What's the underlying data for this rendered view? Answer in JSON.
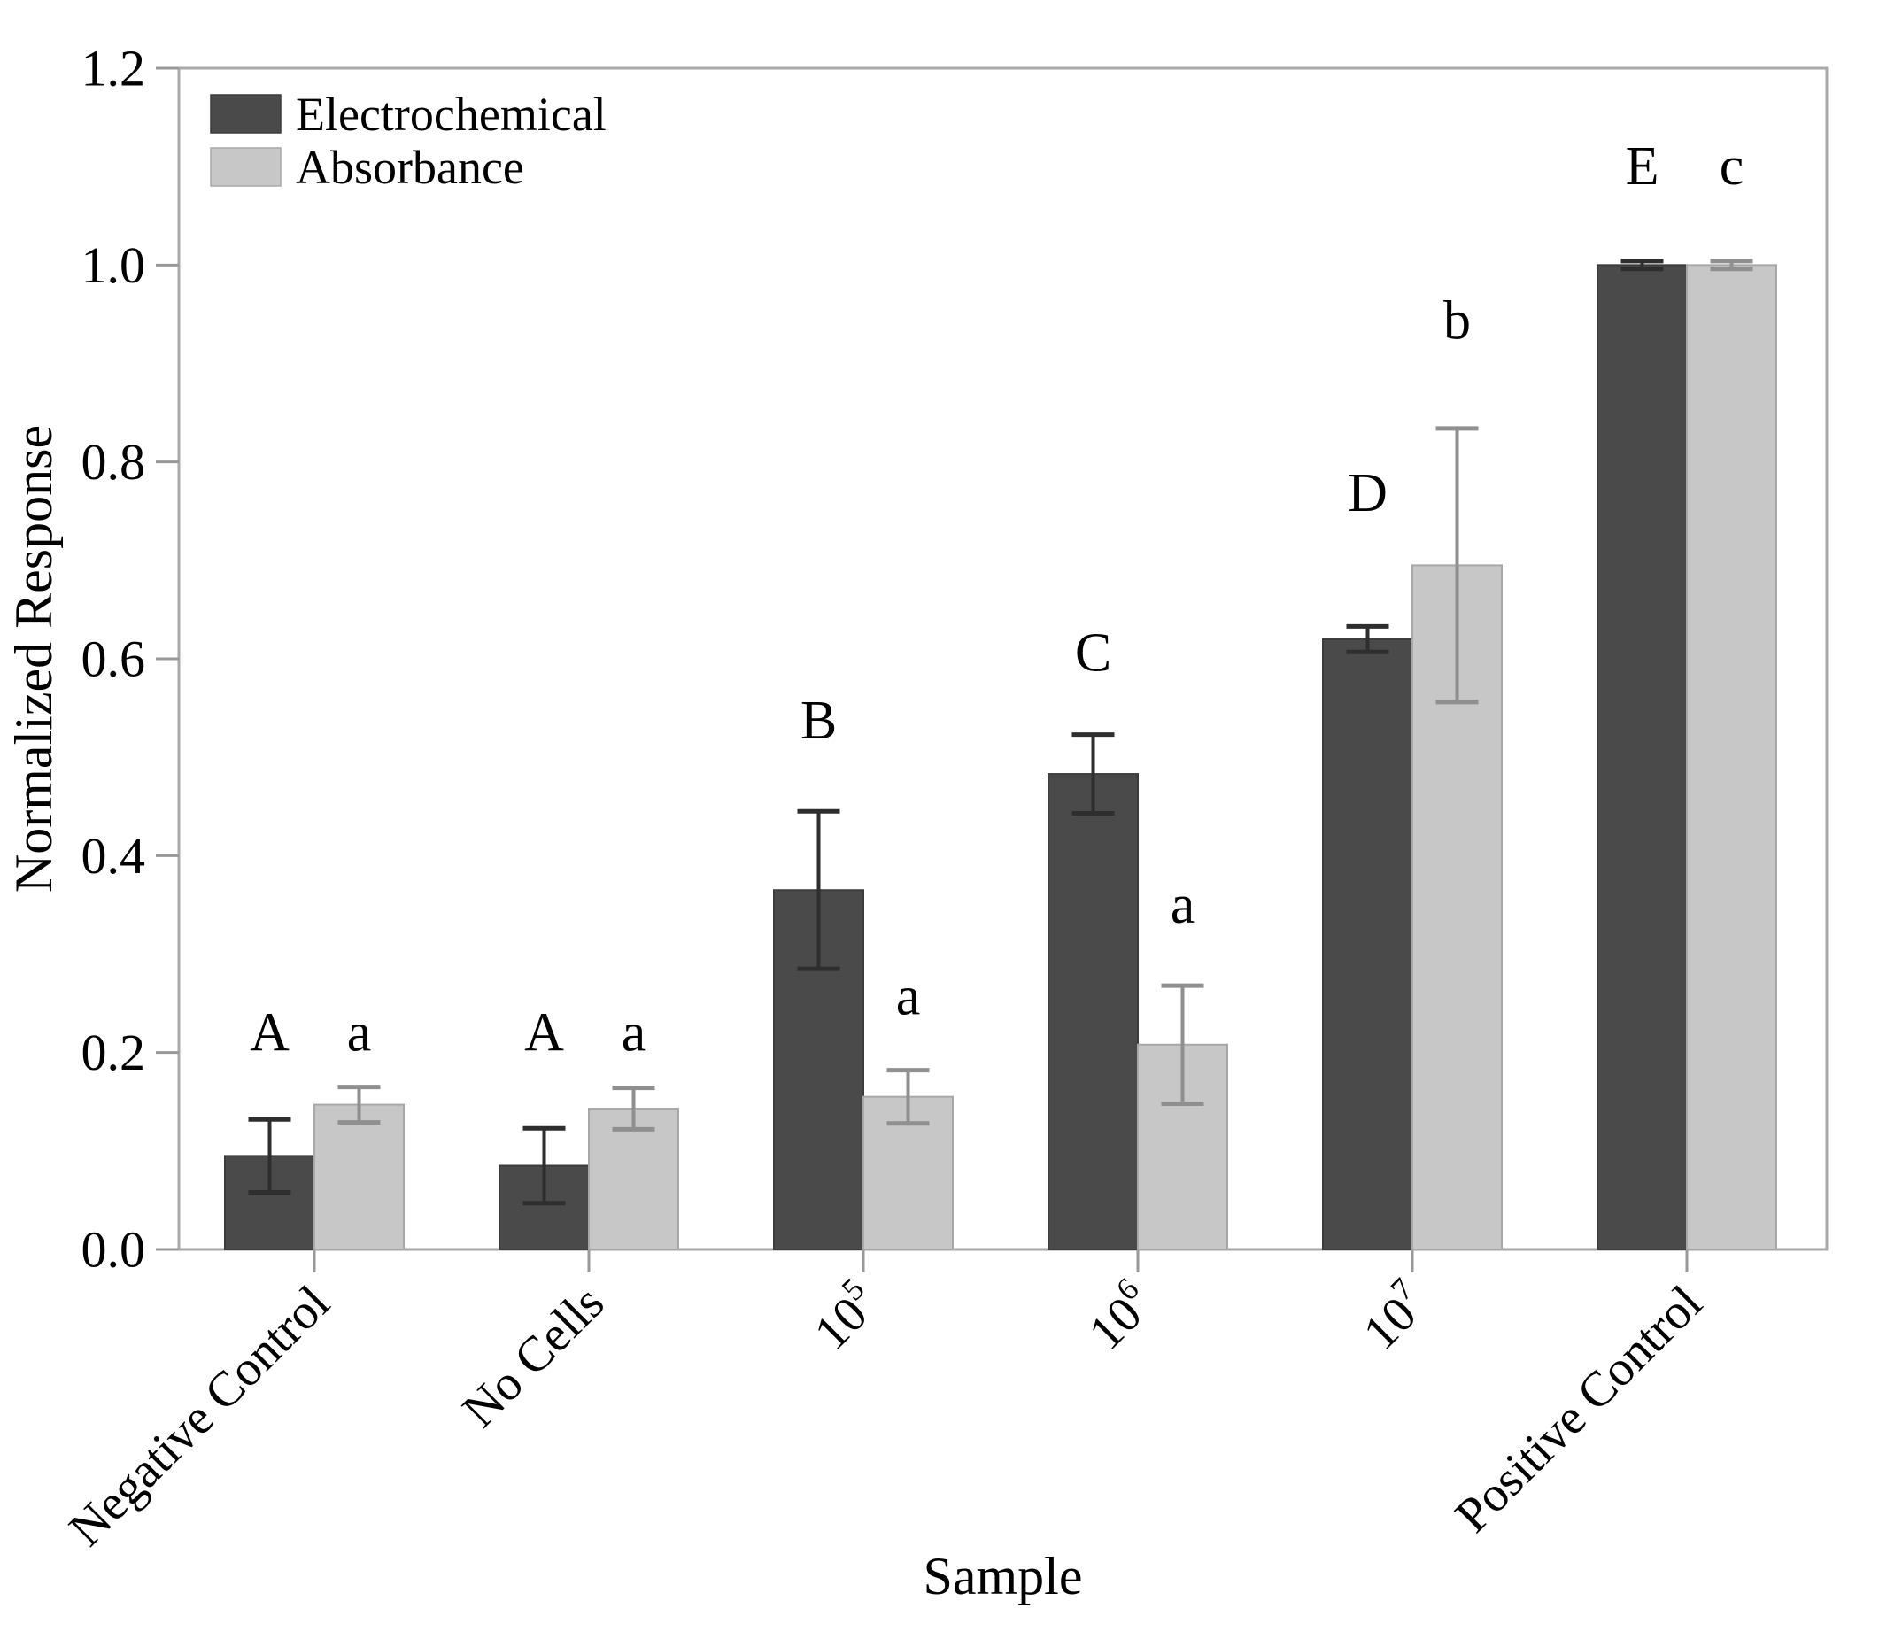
{
  "figure": {
    "background": "#ffffff",
    "frame_color": "#a9a9a9",
    "tick_color": "#999999",
    "text_color": "#000000"
  },
  "chart_data": {
    "type": "bar",
    "title": "",
    "xlabel": "Sample",
    "ylabel": "Normalized Response",
    "ylim": [
      0,
      1.2
    ],
    "yticks": [
      "0.0",
      "0.2",
      "0.4",
      "0.6",
      "0.8",
      "1.0",
      "1.2"
    ],
    "grid": false,
    "legend_position": "top-left",
    "categories": [
      {
        "label": "Negative Control",
        "sup": ""
      },
      {
        "label": "No Cells",
        "sup": ""
      },
      {
        "label": "10",
        "sup": "5"
      },
      {
        "label": "10",
        "sup": "6"
      },
      {
        "label": "10",
        "sup": "7"
      },
      {
        "label": "Positive Control",
        "sup": ""
      }
    ],
    "series": [
      {
        "name": "Electrochemical",
        "bar_color": "#4a4a4a",
        "bar_edge_color": "#3c3c3c",
        "error_color": "#2e2e2e",
        "values": [
          0.095,
          0.085,
          0.365,
          0.483,
          0.62,
          1.0
        ],
        "errors": [
          0.037,
          0.038,
          0.08,
          0.04,
          0.013,
          0.004
        ],
        "sig_letters": [
          "A",
          "A",
          "B",
          "C",
          "D",
          "E"
        ],
        "sig_letter_y": [
          0.22,
          0.22,
          0.537,
          0.606,
          0.768,
          1.1
        ]
      },
      {
        "name": "Absorbance",
        "bar_color": "#c7c7c7",
        "bar_edge_color": "#a8a8a8",
        "error_color": "#8f8f8f",
        "values": [
          0.147,
          0.143,
          0.155,
          0.208,
          0.695,
          1.0
        ],
        "errors": [
          0.018,
          0.021,
          0.027,
          0.06,
          0.139,
          0.004
        ],
        "sig_letters": [
          "a",
          "a",
          "a",
          "a",
          "b",
          "c"
        ],
        "sig_letter_y": [
          0.22,
          0.22,
          0.257,
          0.35,
          0.943,
          1.1
        ]
      }
    ]
  }
}
